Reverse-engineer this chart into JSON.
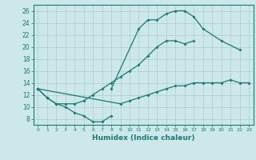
{
  "xlabel": "Humidex (Indice chaleur)",
  "bg_color": "#cce8ea",
  "grid_color": "#aacccc",
  "line_color": "#1a7a6e",
  "xlim": [
    -0.5,
    23.5
  ],
  "ylim": [
    7,
    27
  ],
  "yticks": [
    8,
    10,
    12,
    14,
    16,
    18,
    20,
    22,
    24,
    26
  ],
  "xticks": [
    0,
    1,
    2,
    3,
    4,
    5,
    6,
    7,
    8,
    9,
    10,
    11,
    12,
    13,
    14,
    15,
    16,
    17,
    18,
    19,
    20,
    21,
    22,
    23
  ],
  "curves": [
    {
      "x": [
        0,
        1,
        2,
        3,
        4,
        5,
        6,
        7,
        8
      ],
      "y": [
        13,
        11.5,
        10.5,
        10,
        9,
        8.5,
        7.5,
        7.5,
        8.5
      ]
    },
    {
      "x": [
        0,
        1,
        2,
        3,
        4,
        5,
        6,
        7,
        8,
        9,
        10,
        11,
        12,
        13,
        14,
        15,
        16,
        17
      ],
      "y": [
        13,
        11.5,
        10.5,
        10.5,
        10.5,
        11,
        12,
        13,
        14,
        15,
        16,
        17,
        18.5,
        20,
        21,
        21,
        20.5,
        21
      ]
    },
    {
      "x": [
        8,
        11,
        12,
        13,
        14,
        15,
        16,
        17,
        18,
        20,
        22
      ],
      "y": [
        13,
        23,
        24.5,
        24.5,
        25.5,
        26,
        26,
        25,
        23,
        21,
        19.5
      ]
    },
    {
      "x": [
        0,
        9,
        10,
        11,
        12,
        13,
        14,
        15,
        16,
        17,
        18,
        19,
        20,
        21,
        22,
        23
      ],
      "y": [
        13,
        10.5,
        11,
        11.5,
        12,
        12.5,
        13,
        13.5,
        13.5,
        14,
        14,
        14,
        14,
        14.5,
        14,
        14
      ]
    }
  ]
}
